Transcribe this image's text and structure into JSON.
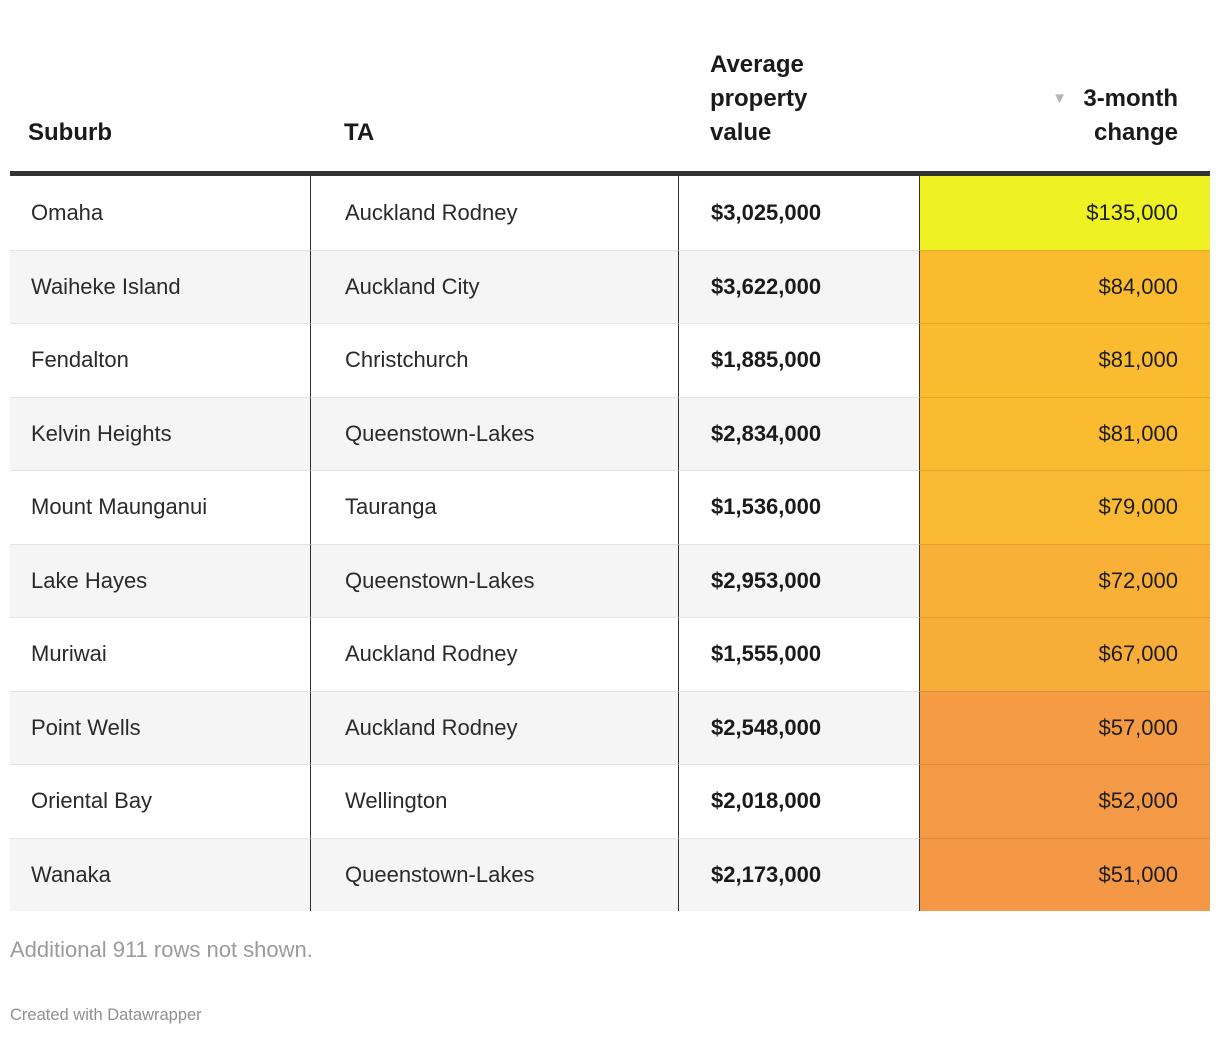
{
  "chart_data": {
    "type": "table",
    "headers": {
      "suburb": "Suburb",
      "ta": "TA",
      "value": "Average property value",
      "change": "3-month change"
    },
    "sort_indicator": {
      "column": "3-month change",
      "direction": "descending",
      "icon": "▼"
    },
    "heatmap_column": "3-month change",
    "color_scale": {
      "high": "#eef222",
      "mid": "#fabb30",
      "low": "#f49846"
    },
    "rows": [
      {
        "suburb": "Omaha",
        "ta": "Auckland Rodney",
        "value": "$3,025,000",
        "value_raw": 3025000,
        "change": "$135,000",
        "change_raw": 135000,
        "change_color": "#eef222"
      },
      {
        "suburb": "Waiheke Island",
        "ta": "Auckland City",
        "value": "$3,622,000",
        "value_raw": 3622000,
        "change": "$84,000",
        "change_raw": 84000,
        "change_color": "#fabc2e"
      },
      {
        "suburb": "Fendalton",
        "ta": "Christchurch",
        "value": "$1,885,000",
        "value_raw": 1885000,
        "change": "$81,000",
        "change_raw": 81000,
        "change_color": "#fabb30"
      },
      {
        "suburb": "Kelvin Heights",
        "ta": "Queenstown-Lakes",
        "value": "$2,834,000",
        "value_raw": 2834000,
        "change": "$81,000",
        "change_raw": 81000,
        "change_color": "#fabb30"
      },
      {
        "suburb": "Mount Maunganui",
        "ta": "Tauranga",
        "value": "$1,536,000",
        "value_raw": 1536000,
        "change": "$79,000",
        "change_raw": 79000,
        "change_color": "#f9b932"
      },
      {
        "suburb": "Lake Hayes",
        "ta": "Queenstown-Lakes",
        "value": "$2,953,000",
        "value_raw": 2953000,
        "change": "$72,000",
        "change_raw": 72000,
        "change_color": "#f8b136"
      },
      {
        "suburb": "Muriwai",
        "ta": "Auckland Rodney",
        "value": "$1,555,000",
        "value_raw": 1555000,
        "change": "$67,000",
        "change_raw": 67000,
        "change_color": "#f7ae39"
      },
      {
        "suburb": "Point Wells",
        "ta": "Auckland Rodney",
        "value": "$2,548,000",
        "value_raw": 2548000,
        "change": "$57,000",
        "change_raw": 57000,
        "change_color": "#f49b43"
      },
      {
        "suburb": "Oriental Bay",
        "ta": "Wellington",
        "value": "$2,018,000",
        "value_raw": 2018000,
        "change": "$52,000",
        "change_raw": 52000,
        "change_color": "#f49945"
      },
      {
        "suburb": "Wanaka",
        "ta": "Queenstown-Lakes",
        "value": "$2,173,000",
        "value_raw": 2173000,
        "change": "$51,000",
        "change_raw": 51000,
        "change_color": "#f49846"
      }
    ],
    "note": "Additional 911 rows not shown.",
    "credit": "Created with Datawrapper"
  }
}
